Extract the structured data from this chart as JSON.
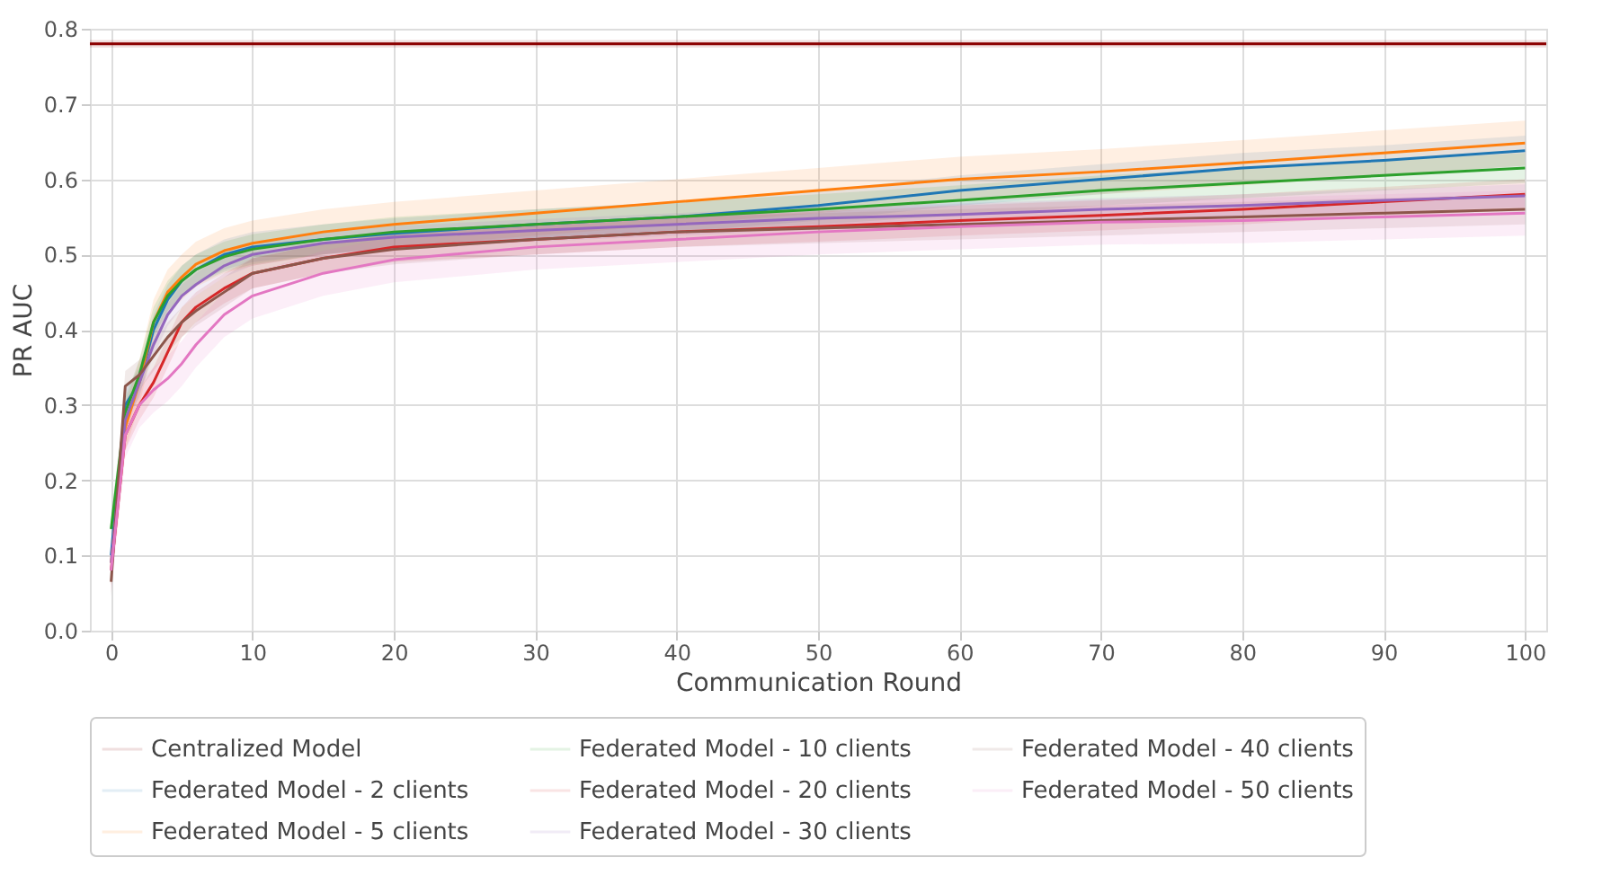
{
  "chart_data": {
    "type": "line",
    "xlabel": "Communication Round",
    "ylabel": "PR AUC",
    "x": [
      0,
      1,
      2,
      3,
      4,
      5,
      6,
      8,
      10,
      15,
      20,
      30,
      40,
      50,
      60,
      70,
      80,
      90,
      100
    ],
    "xlim": [
      -1.5,
      101.5
    ],
    "xticks": [
      0,
      10,
      20,
      30,
      40,
      50,
      60,
      70,
      80,
      90,
      100
    ],
    "ylim": [
      0,
      0.8
    ],
    "yticks": [
      {
        "value": 0,
        "label": "0.0"
      },
      0.1,
      0.2,
      0.3,
      0.4,
      0.5,
      0.6,
      0.7,
      0.8
    ],
    "grid": true,
    "legend": "bottom",
    "marker": "none",
    "line_style": "solid",
    "series": [
      {
        "name": "Centralized Model",
        "color": "#8b0000",
        "x": [
          -1.5,
          101.5
        ],
        "values": [
          0.78,
          0.78
        ],
        "lower": [
          0.775,
          0.775
        ],
        "upper": [
          0.785,
          0.785
        ]
      },
      {
        "name": "Federated Model - 2 clients",
        "color": "#1f77b4",
        "values": [
          0.1,
          0.3,
          0.33,
          0.4,
          0.44,
          0.465,
          0.48,
          0.5,
          0.51,
          0.52,
          0.528,
          0.54,
          0.55,
          0.565,
          0.585,
          0.6,
          0.615,
          0.625,
          0.638
        ],
        "lower": [
          0.08,
          0.28,
          0.31,
          0.38,
          0.42,
          0.445,
          0.46,
          0.48,
          0.49,
          0.5,
          0.508,
          0.52,
          0.53,
          0.545,
          0.565,
          0.58,
          0.595,
          0.605,
          0.618
        ],
        "upper": [
          0.12,
          0.32,
          0.35,
          0.42,
          0.46,
          0.485,
          0.5,
          0.52,
          0.53,
          0.54,
          0.548,
          0.56,
          0.57,
          0.585,
          0.605,
          0.62,
          0.635,
          0.645,
          0.658
        ]
      },
      {
        "name": "Federated Model - 5 clients",
        "color": "#ff7f0e",
        "values": [
          0.09,
          0.27,
          0.33,
          0.41,
          0.45,
          0.47,
          0.487,
          0.505,
          0.515,
          0.53,
          0.54,
          0.555,
          0.57,
          0.585,
          0.6,
          0.61,
          0.622,
          0.635,
          0.648
        ],
        "lower": [
          0.06,
          0.24,
          0.3,
          0.38,
          0.42,
          0.44,
          0.457,
          0.475,
          0.485,
          0.5,
          0.51,
          0.525,
          0.54,
          0.555,
          0.57,
          0.58,
          0.592,
          0.605,
          0.618
        ],
        "upper": [
          0.12,
          0.3,
          0.36,
          0.44,
          0.48,
          0.5,
          0.517,
          0.535,
          0.545,
          0.56,
          0.57,
          0.585,
          0.6,
          0.615,
          0.63,
          0.64,
          0.652,
          0.665,
          0.678
        ]
      },
      {
        "name": "Federated Model - 10 clients",
        "color": "#2ca02c",
        "values": [
          0.135,
          0.29,
          0.34,
          0.41,
          0.445,
          0.465,
          0.48,
          0.497,
          0.507,
          0.52,
          0.53,
          0.54,
          0.55,
          0.56,
          0.572,
          0.585,
          0.595,
          0.605,
          0.615
        ],
        "lower": [
          0.115,
          0.27,
          0.32,
          0.39,
          0.425,
          0.445,
          0.46,
          0.477,
          0.487,
          0.5,
          0.51,
          0.52,
          0.53,
          0.54,
          0.552,
          0.565,
          0.575,
          0.585,
          0.595
        ],
        "upper": [
          0.155,
          0.31,
          0.36,
          0.43,
          0.465,
          0.485,
          0.5,
          0.517,
          0.527,
          0.54,
          0.55,
          0.56,
          0.57,
          0.58,
          0.592,
          0.605,
          0.615,
          0.625,
          0.635
        ]
      },
      {
        "name": "Federated Model - 20 clients",
        "color": "#d62728",
        "values": [
          0.08,
          0.26,
          0.3,
          0.33,
          0.37,
          0.41,
          0.43,
          0.455,
          0.475,
          0.495,
          0.51,
          0.52,
          0.53,
          0.537,
          0.545,
          0.552,
          0.56,
          0.57,
          0.58
        ],
        "lower": [
          0.06,
          0.24,
          0.28,
          0.31,
          0.35,
          0.39,
          0.41,
          0.435,
          0.455,
          0.475,
          0.49,
          0.5,
          0.51,
          0.517,
          0.525,
          0.532,
          0.54,
          0.55,
          0.56
        ],
        "upper": [
          0.1,
          0.28,
          0.32,
          0.35,
          0.39,
          0.43,
          0.45,
          0.475,
          0.495,
          0.515,
          0.53,
          0.54,
          0.55,
          0.557,
          0.565,
          0.572,
          0.58,
          0.59,
          0.6
        ]
      },
      {
        "name": "Federated Model - 30 clients",
        "color": "#9467bd",
        "values": [
          0.09,
          0.28,
          0.33,
          0.38,
          0.42,
          0.445,
          0.46,
          0.485,
          0.5,
          0.515,
          0.523,
          0.532,
          0.54,
          0.548,
          0.553,
          0.56,
          0.565,
          0.572,
          0.578
        ],
        "lower": [
          0.075,
          0.265,
          0.315,
          0.365,
          0.405,
          0.43,
          0.445,
          0.47,
          0.485,
          0.5,
          0.508,
          0.517,
          0.525,
          0.533,
          0.538,
          0.545,
          0.55,
          0.557,
          0.563
        ],
        "upper": [
          0.105,
          0.295,
          0.345,
          0.395,
          0.435,
          0.46,
          0.475,
          0.5,
          0.515,
          0.53,
          0.538,
          0.547,
          0.555,
          0.563,
          0.568,
          0.575,
          0.58,
          0.587,
          0.593
        ]
      },
      {
        "name": "Federated Model - 40 clients",
        "color": "#8c564b",
        "values": [
          0.065,
          0.325,
          0.34,
          0.365,
          0.39,
          0.41,
          0.425,
          0.45,
          0.475,
          0.495,
          0.507,
          0.52,
          0.53,
          0.535,
          0.54,
          0.545,
          0.55,
          0.555,
          0.56
        ],
        "lower": [
          0.045,
          0.305,
          0.32,
          0.345,
          0.37,
          0.39,
          0.405,
          0.43,
          0.455,
          0.475,
          0.487,
          0.5,
          0.51,
          0.515,
          0.52,
          0.525,
          0.53,
          0.535,
          0.54
        ],
        "upper": [
          0.085,
          0.345,
          0.36,
          0.385,
          0.41,
          0.43,
          0.445,
          0.47,
          0.495,
          0.515,
          0.527,
          0.54,
          0.55,
          0.555,
          0.56,
          0.565,
          0.57,
          0.575,
          0.58
        ]
      },
      {
        "name": "Federated Model - 50 clients",
        "color": "#e377c2",
        "values": [
          0.08,
          0.26,
          0.3,
          0.32,
          0.335,
          0.355,
          0.38,
          0.42,
          0.445,
          0.475,
          0.493,
          0.51,
          0.52,
          0.53,
          0.537,
          0.543,
          0.545,
          0.55,
          0.555
        ],
        "lower": [
          0.05,
          0.23,
          0.27,
          0.29,
          0.305,
          0.325,
          0.35,
          0.39,
          0.415,
          0.445,
          0.463,
          0.48,
          0.49,
          0.5,
          0.507,
          0.513,
          0.515,
          0.52,
          0.525
        ],
        "upper": [
          0.11,
          0.29,
          0.33,
          0.35,
          0.365,
          0.385,
          0.41,
          0.45,
          0.475,
          0.505,
          0.523,
          0.54,
          0.55,
          0.56,
          0.567,
          0.573,
          0.575,
          0.58,
          0.585
        ]
      }
    ]
  }
}
